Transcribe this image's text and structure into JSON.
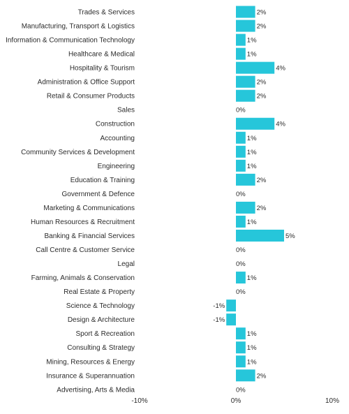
{
  "chart_data": {
    "type": "bar",
    "orientation": "horizontal",
    "categories": [
      "Trades & Services",
      "Manufacturing, Transport & Logistics",
      "Information & Communication Technology",
      "Healthcare & Medical",
      "Hospitality & Tourism",
      "Administration & Office Support",
      "Retail & Consumer Products",
      "Sales",
      "Construction",
      "Accounting",
      "Community Services & Development",
      "Engineering",
      "Education & Training",
      "Government & Defence",
      "Marketing & Communications",
      "Human Resources & Recruitment",
      "Banking & Financial Services",
      "Call Centre & Customer Service",
      "Legal",
      "Farming, Animals & Conservation",
      "Real Estate & Property",
      "Science & Technology",
      "Design & Architecture",
      "Sport & Recreation",
      "Consulting & Strategy",
      "Mining, Resources & Energy",
      "Insurance & Superannuation",
      "Advertising, Arts & Media"
    ],
    "values": [
      2,
      2,
      1,
      1,
      4,
      2,
      2,
      0,
      4,
      1,
      1,
      1,
      2,
      0,
      2,
      1,
      5,
      0,
      0,
      1,
      0,
      -1,
      -1,
      1,
      1,
      1,
      2,
      0
    ],
    "value_labels": [
      "2%",
      "2%",
      "1%",
      "1%",
      "4%",
      "2%",
      "2%",
      "0%",
      "4%",
      "1%",
      "1%",
      "1%",
      "2%",
      "0%",
      "2%",
      "1%",
      "5%",
      "0%",
      "0%",
      "1%",
      "0%",
      "-1%",
      "-1%",
      "1%",
      "1%",
      "1%",
      "2%",
      "0%"
    ],
    "xlim": [
      -10,
      10
    ],
    "x_ticks": [
      -10,
      0,
      10
    ],
    "x_tick_labels": [
      "-10%",
      "0%",
      "10%"
    ],
    "grid": false,
    "legend": "none",
    "bar_color": "#26c6da",
    "text_color": "#2b2b2b"
  }
}
